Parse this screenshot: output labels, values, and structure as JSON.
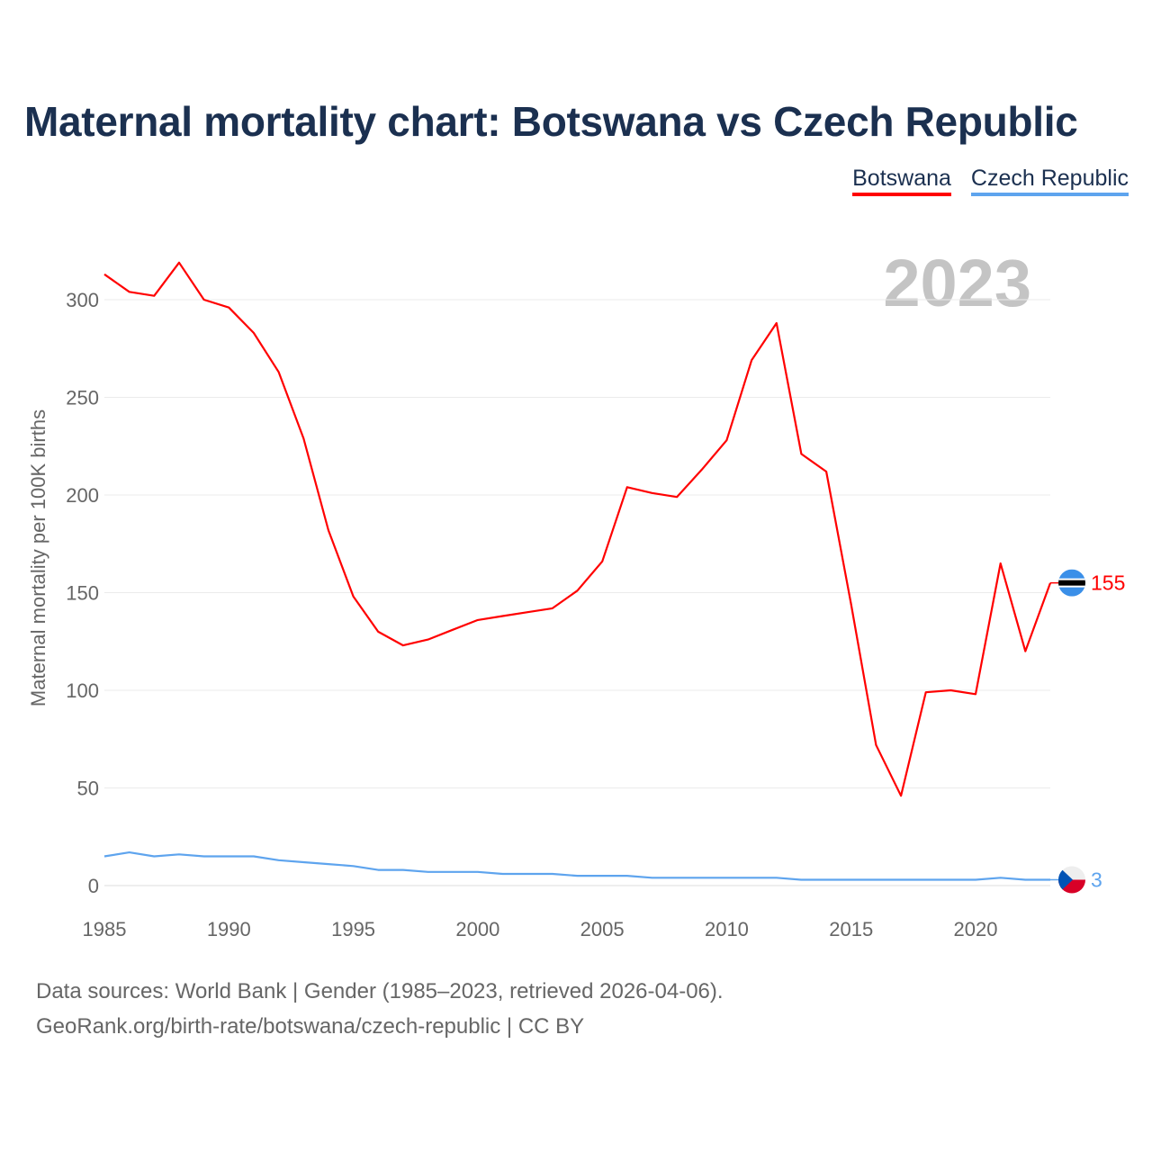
{
  "chart_data": {
    "type": "line",
    "title": "Maternal mortality chart: Botswana vs Czech Republic",
    "ylabel": "Maternal mortality per 100K births",
    "xlabel": "",
    "xlim": [
      1985,
      2023
    ],
    "ylim": [
      0,
      320
    ],
    "x_ticks": [
      "1985",
      "1990",
      "1995",
      "2000",
      "2005",
      "2010",
      "2015",
      "2020"
    ],
    "y_ticks": [
      "0",
      "50",
      "100",
      "150",
      "200",
      "250",
      "300"
    ],
    "grid": true,
    "legend_position": "top-right",
    "year_watermark": "2023",
    "x": [
      1985,
      1986,
      1987,
      1988,
      1989,
      1990,
      1991,
      1992,
      1993,
      1994,
      1995,
      1996,
      1997,
      1998,
      1999,
      2000,
      2001,
      2002,
      2003,
      2004,
      2005,
      2006,
      2007,
      2008,
      2009,
      2010,
      2011,
      2012,
      2013,
      2014,
      2015,
      2016,
      2017,
      2018,
      2019,
      2020,
      2021,
      2022,
      2023
    ],
    "series": [
      {
        "name": "Botswana",
        "color": "#ff0000",
        "end_label": "155",
        "values": [
          313,
          304,
          302,
          319,
          300,
          296,
          283,
          263,
          229,
          182,
          148,
          130,
          123,
          126,
          131,
          136,
          138,
          140,
          142,
          151,
          166,
          204,
          201,
          199,
          213,
          228,
          269,
          288,
          221,
          212,
          144,
          72,
          46,
          99,
          100,
          98,
          165,
          120,
          155
        ]
      },
      {
        "name": "Czech Republic",
        "color": "#5ea4ee",
        "end_label": "3",
        "values": [
          15,
          17,
          15,
          16,
          15,
          15,
          15,
          13,
          12,
          11,
          10,
          8,
          8,
          7,
          7,
          7,
          6,
          6,
          6,
          5,
          5,
          5,
          4,
          4,
          4,
          4,
          4,
          4,
          3,
          3,
          3,
          3,
          3,
          3,
          3,
          3,
          4,
          3,
          3
        ]
      }
    ]
  },
  "footer": {
    "line1": "Data sources: World Bank | Gender (1985–2023, retrieved 2026-04-06).",
    "line2": "GeoRank.org/birth-rate/botswana/czech-republic | CC BY"
  }
}
